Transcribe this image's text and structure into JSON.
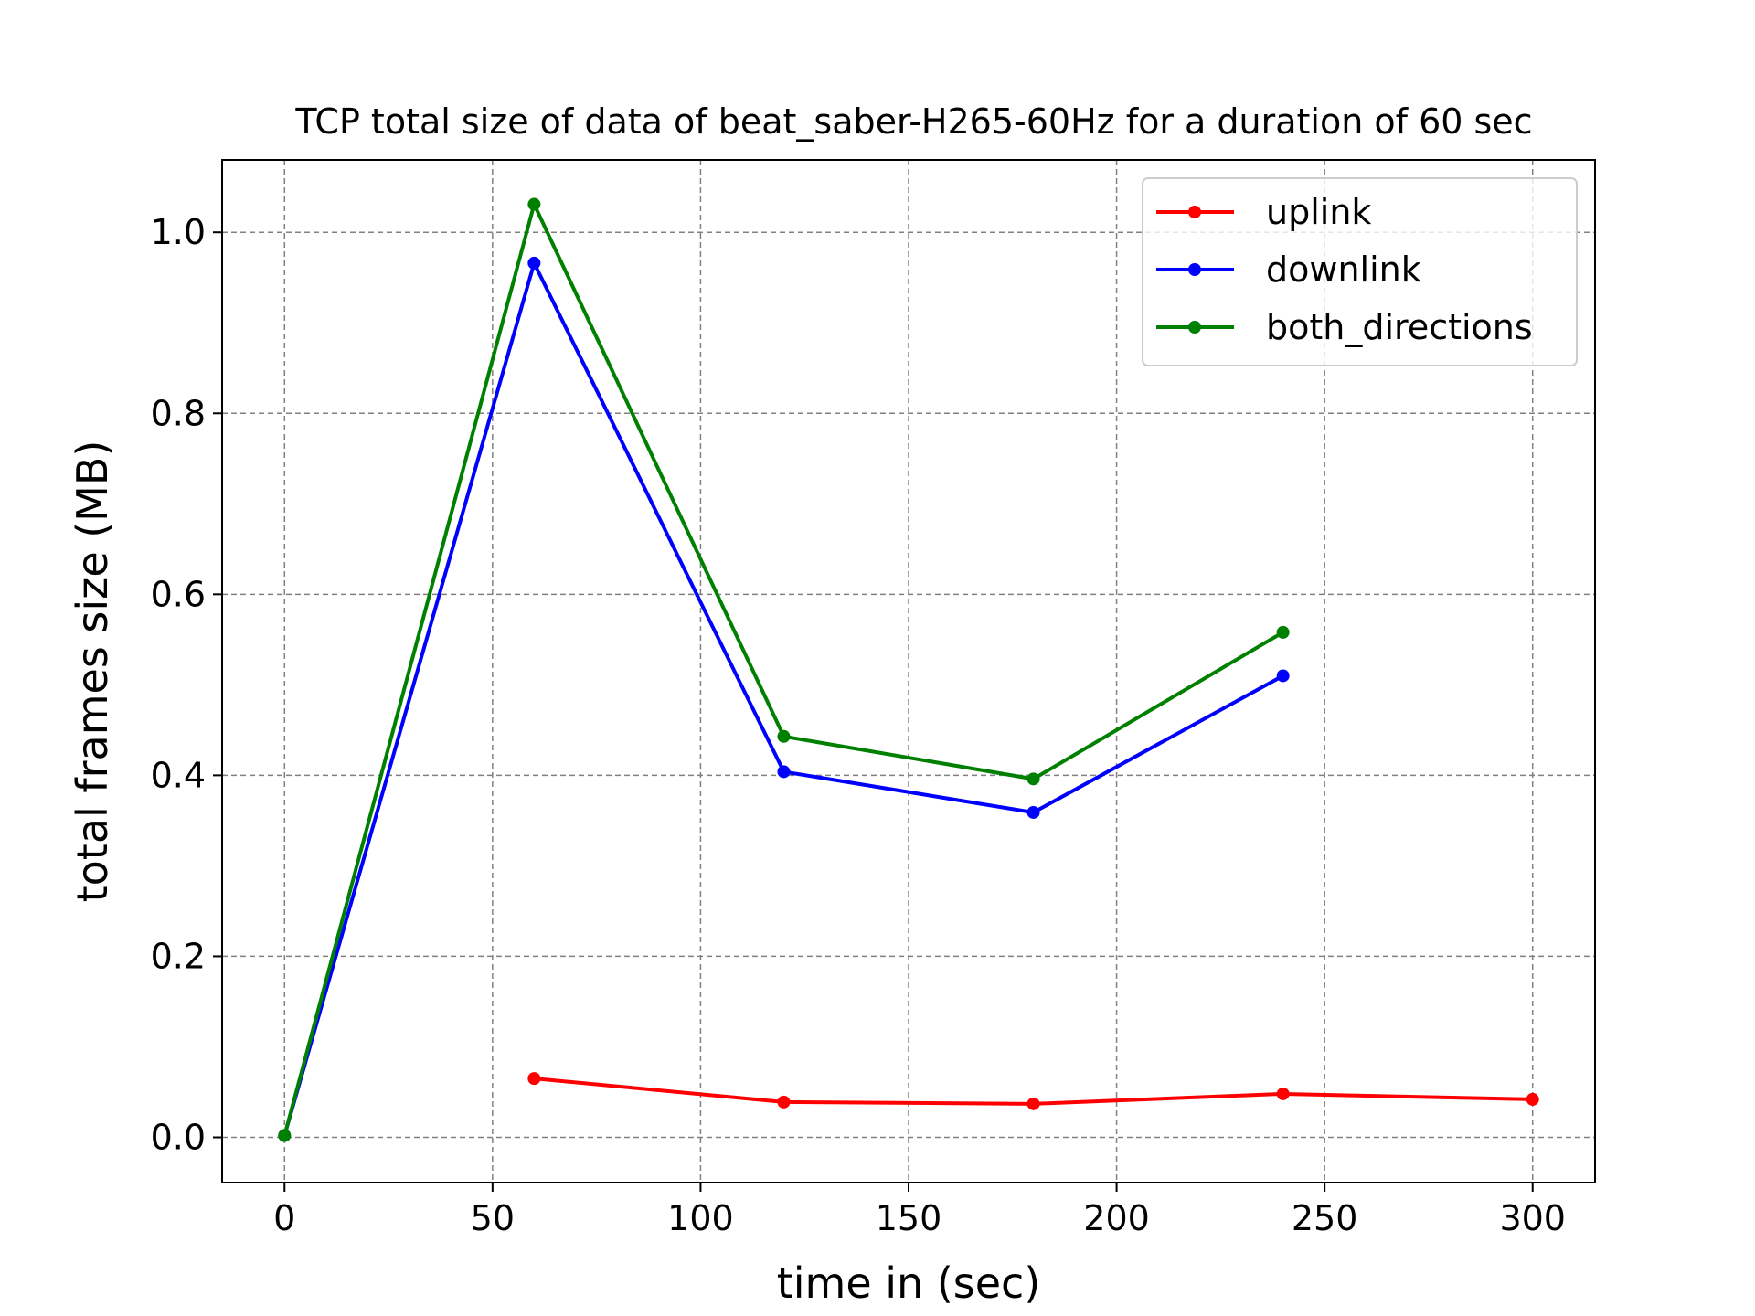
{
  "chart_data": {
    "type": "line",
    "title": "TCP total size of data of beat_saber-H265-60Hz for a duration of 60 sec",
    "xlabel": "time in (sec)",
    "ylabel": "total frames size (MB)",
    "xlim": [
      -15,
      315
    ],
    "ylim": [
      -0.05,
      1.08
    ],
    "xticks": [
      0,
      50,
      100,
      150,
      200,
      250,
      300
    ],
    "xtick_labels": [
      "0",
      "50",
      "100",
      "150",
      "200",
      "250",
      "300"
    ],
    "yticks": [
      0.0,
      0.2,
      0.4,
      0.6,
      0.8,
      1.0
    ],
    "ytick_labels": [
      "0.0",
      "0.2",
      "0.4",
      "0.6",
      "0.8",
      "1.0"
    ],
    "grid": true,
    "legend_position": "top-right",
    "series": [
      {
        "name": "uplink",
        "color": "#ff0000",
        "x": [
          60,
          120,
          180,
          240,
          300
        ],
        "y": [
          0.065,
          0.039,
          0.037,
          0.048,
          0.042
        ]
      },
      {
        "name": "downlink",
        "color": "#0000ff",
        "x": [
          0,
          60,
          120,
          180,
          240
        ],
        "y": [
          0.002,
          0.966,
          0.404,
          0.359,
          0.51
        ]
      },
      {
        "name": "both_directions",
        "color": "#008000",
        "x": [
          0,
          60,
          120,
          180,
          240
        ],
        "y": [
          0.002,
          1.031,
          0.443,
          0.396,
          0.558
        ]
      }
    ]
  }
}
